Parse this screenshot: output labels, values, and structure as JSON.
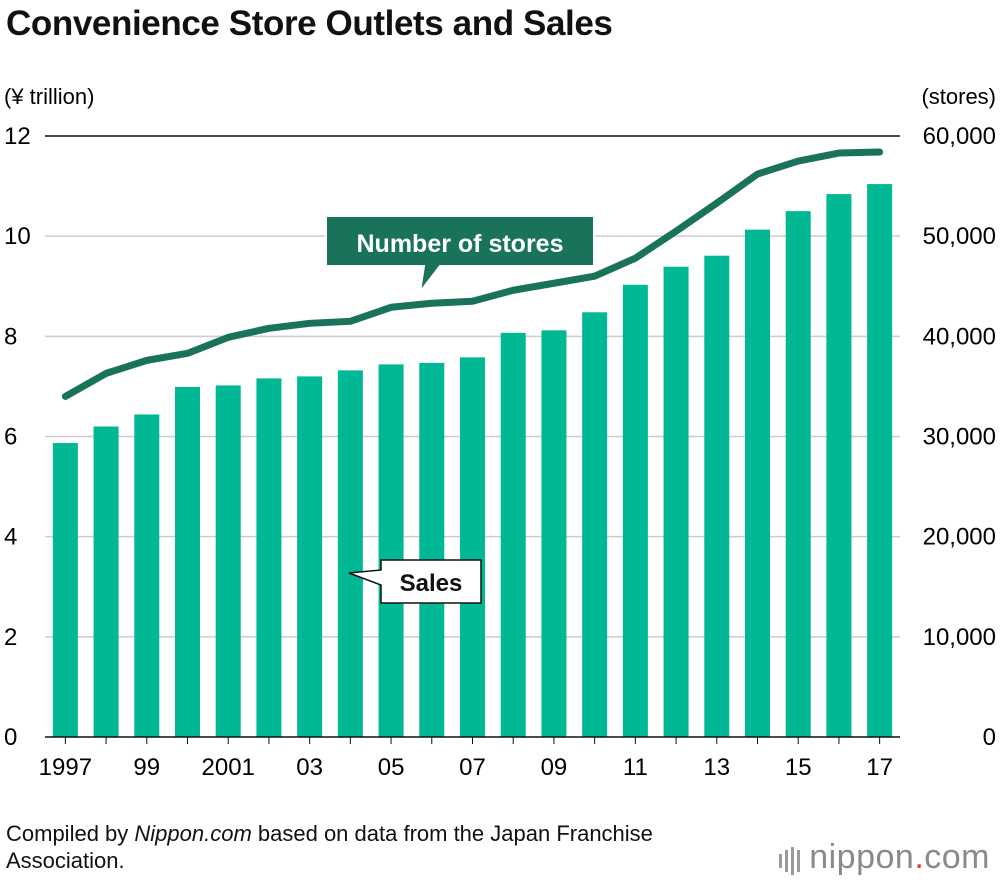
{
  "title": "Convenience Store Outlets and Sales",
  "footer": {
    "prefix": "Compiled by ",
    "source": "Nippon.com",
    "suffix": " based on data from the Japan Franchise Association."
  },
  "logo": {
    "name": "nippon",
    "dot": ".",
    "tld": "com"
  },
  "colors": {
    "bar": "#00b894",
    "line": "#19735a",
    "callout_dark": "#19735a",
    "grid": "#cccccc"
  },
  "chart_data": {
    "type": "bar+line",
    "categories": [
      "1997",
      "1998",
      "1999",
      "2000",
      "2001",
      "2002",
      "2003",
      "2004",
      "2005",
      "2006",
      "2007",
      "2008",
      "2009",
      "2010",
      "2011",
      "2012",
      "2013",
      "2014",
      "2015",
      "2016",
      "2017"
    ],
    "x_tick_labels": [
      "1997",
      "",
      "99",
      "",
      "2001",
      "",
      "03",
      "",
      "05",
      "",
      "07",
      "",
      "09",
      "",
      "11",
      "",
      "13",
      "",
      "15",
      "",
      "17"
    ],
    "series": [
      {
        "name": "Sales",
        "type": "bar",
        "axis": "left",
        "values": [
          5.87,
          6.2,
          6.44,
          6.99,
          7.02,
          7.16,
          7.2,
          7.32,
          7.44,
          7.47,
          7.58,
          8.07,
          8.12,
          8.48,
          9.03,
          9.39,
          9.61,
          10.13,
          10.5,
          10.84,
          11.04
        ]
      },
      {
        "name": "Number of stores",
        "type": "line",
        "axis": "right",
        "values": [
          34000,
          36300,
          37600,
          38300,
          39900,
          40800,
          41300,
          41500,
          42900,
          43300,
          43500,
          44600,
          45300,
          46000,
          47800,
          50500,
          53300,
          56200,
          57500,
          58300,
          58400
        ]
      }
    ],
    "left_axis": {
      "label": "(¥ trillion)",
      "min": 0,
      "max": 12,
      "ticks": [
        0,
        2,
        4,
        6,
        8,
        10,
        12
      ]
    },
    "right_axis": {
      "label": "(stores)",
      "min": 0,
      "max": 60000,
      "ticks": [
        "0",
        "10,000",
        "20,000",
        "30,000",
        "40,000",
        "50,000",
        "60,000"
      ]
    },
    "annotations": {
      "stores": "Number of stores",
      "sales": "Sales"
    },
    "grid": true
  }
}
